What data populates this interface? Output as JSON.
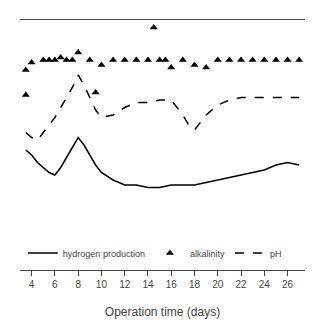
{
  "chart_data": {
    "type": "line",
    "xlabel": "Operation time (days)",
    "xlim": [
      3,
      27.5
    ],
    "xticks": [
      4,
      6,
      8,
      10,
      12,
      14,
      16,
      18,
      20,
      22,
      24,
      26
    ],
    "ylim": [
      0,
      10
    ],
    "tick_labels": "x",
    "grid": false,
    "legend": "lower left",
    "series": [
      {
        "name": "hydrogen production",
        "type": "line",
        "line_style": "solid",
        "color": "black",
        "x": [
          3.5,
          4,
          4.5,
          5,
          5.5,
          6,
          6.5,
          7,
          7.5,
          8,
          8.5,
          9,
          9.5,
          10,
          11,
          12,
          13,
          14,
          15,
          16,
          17,
          18,
          19,
          20,
          21,
          22,
          23,
          24,
          25,
          26,
          27
        ],
        "values": [
          4.8,
          4.6,
          4.3,
          4.1,
          3.9,
          3.8,
          4.1,
          4.5,
          4.9,
          5.3,
          5.0,
          4.6,
          4.2,
          3.9,
          3.6,
          3.4,
          3.4,
          3.3,
          3.3,
          3.4,
          3.4,
          3.4,
          3.5,
          3.6,
          3.7,
          3.8,
          3.9,
          4.0,
          4.2,
          4.3,
          4.2
        ]
      },
      {
        "name": "alkalinity",
        "type": "scatter",
        "marker": "triangle-up",
        "color": "black",
        "x": [
          3.5,
          4,
          5,
          5.5,
          6,
          6.5,
          7,
          7.5,
          8,
          9,
          10,
          11,
          12,
          13,
          14,
          15,
          15.5,
          16,
          17,
          18,
          19,
          20,
          21,
          22,
          23,
          24,
          25,
          26,
          27,
          3.5,
          9.5,
          14.5
        ],
        "values": [
          8.0,
          8.3,
          8.4,
          8.4,
          8.4,
          8.5,
          8.4,
          8.4,
          8.7,
          8.4,
          8.2,
          8.4,
          8.4,
          8.4,
          8.4,
          8.4,
          8.4,
          8.1,
          8.4,
          8.2,
          8.1,
          8.4,
          8.4,
          8.4,
          8.4,
          8.4,
          8.4,
          8.4,
          8.4,
          7.0,
          7.1,
          9.7
        ]
      },
      {
        "name": "pH",
        "type": "line",
        "line_style": "dashed",
        "color": "black",
        "x": [
          3.5,
          4,
          4.5,
          5,
          5.5,
          6,
          6.5,
          7,
          7.5,
          8,
          8.5,
          9,
          9.5,
          10,
          11,
          12,
          13,
          14,
          15,
          16,
          16.5,
          17,
          17.5,
          18,
          19,
          20,
          21,
          22,
          23,
          24,
          25,
          26,
          27
        ],
        "values": [
          5.5,
          5.3,
          5.2,
          5.5,
          5.8,
          6.1,
          6.5,
          6.9,
          7.3,
          7.8,
          7.4,
          6.9,
          6.4,
          6.1,
          6.2,
          6.5,
          6.7,
          6.7,
          6.8,
          6.8,
          6.5,
          6.2,
          5.8,
          5.6,
          6.2,
          6.6,
          6.8,
          6.9,
          6.9,
          6.9,
          6.9,
          6.9,
          6.9
        ]
      }
    ]
  }
}
